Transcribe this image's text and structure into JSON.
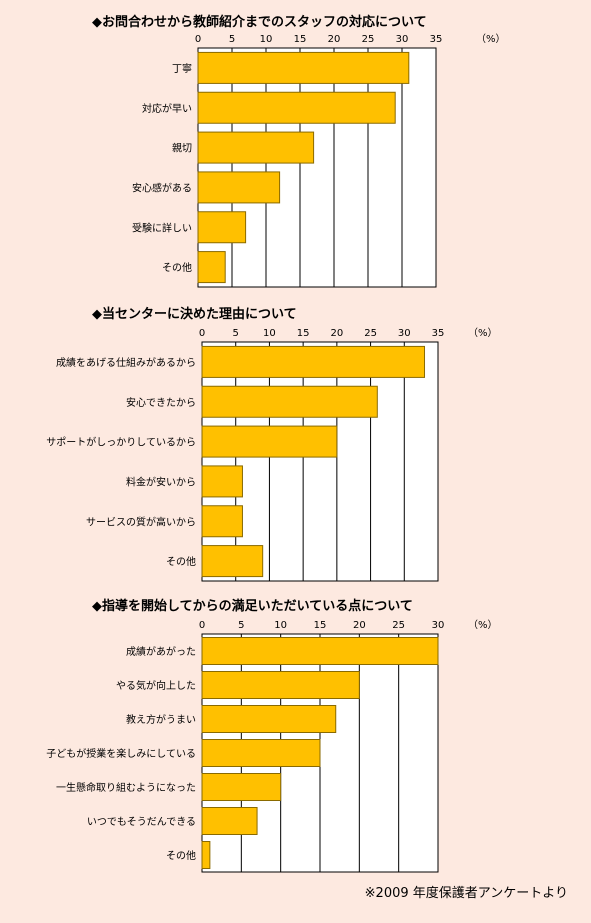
{
  "source_note": "※2009 年度保護者アンケートより",
  "unit_label": "（%）",
  "colors": {
    "background": "#FDE9E0",
    "bar_fill": "#FFC000",
    "bar_stroke": "#8A6A00",
    "plot_bg": "#FFFFFF",
    "grid": "#000000"
  },
  "chart_data": [
    {
      "type": "bar",
      "orientation": "horizontal",
      "title": "◆お問合わせから教師紹介までのスタッフの対応について",
      "categories": [
        "丁寧",
        "対応が早い",
        "親切",
        "安心感がある",
        "受験に詳しい",
        "その他"
      ],
      "values": [
        31,
        29,
        17,
        12,
        7,
        4
      ],
      "xlim": [
        0,
        35
      ],
      "ticks": [
        0,
        5,
        10,
        15,
        20,
        25,
        30,
        35
      ],
      "grid": true
    },
    {
      "type": "bar",
      "orientation": "horizontal",
      "title": "◆当センターに決めた理由について",
      "categories": [
        "成績をあげる仕組みがあるから",
        "安心できたから",
        "サポートがしっかりしているから",
        "料金が安いから",
        "サービスの質が高いから",
        "その他"
      ],
      "values": [
        33,
        26,
        20,
        6,
        6,
        9
      ],
      "xlim": [
        0,
        35
      ],
      "ticks": [
        0,
        5,
        10,
        15,
        20,
        25,
        30,
        35
      ],
      "grid": true
    },
    {
      "type": "bar",
      "orientation": "horizontal",
      "title": "◆指導を開始してからの満足いただいている点について",
      "categories": [
        "成績があがった",
        "やる気が向上した",
        "教え方がうまい",
        "子どもが授業を楽しみにしている",
        "一生懸命取り組むようになった",
        "いつでもそうだんできる",
        "その他"
      ],
      "values": [
        30,
        20,
        17,
        15,
        10,
        7,
        1
      ],
      "xlim": [
        0,
        30
      ],
      "ticks": [
        0,
        5,
        10,
        15,
        20,
        25,
        30
      ],
      "grid": true
    }
  ]
}
